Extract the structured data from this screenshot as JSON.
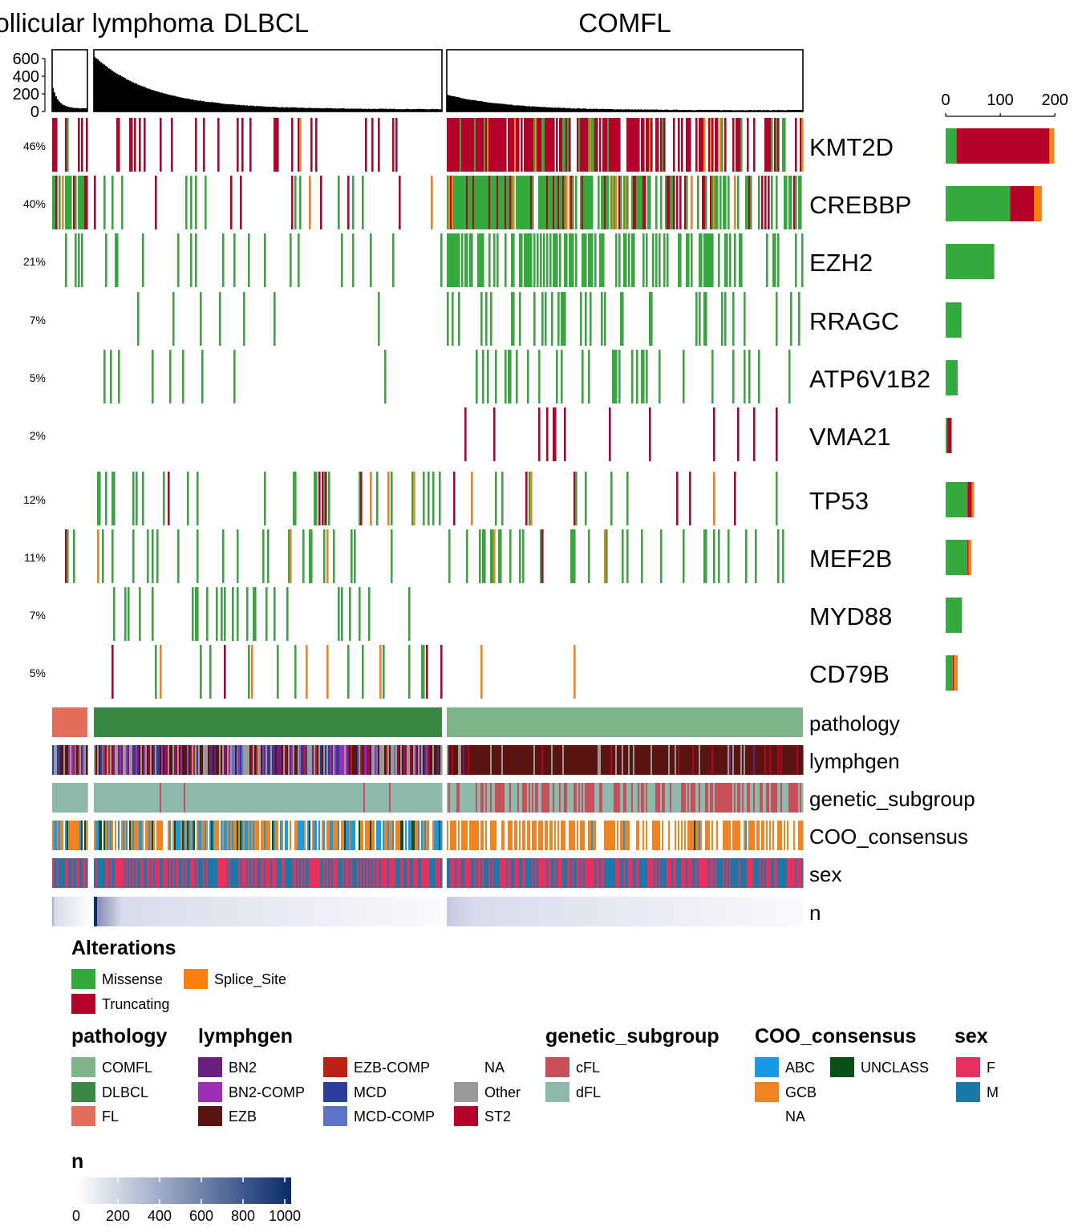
{
  "chart_data": {
    "type": "heatmap",
    "column_titles": [
      "Follicular lymphoma",
      "DLBCL",
      "COMFL"
    ],
    "top_barplot": {
      "y_ticks": [
        0,
        200,
        400,
        600
      ],
      "ylim": [
        0,
        700
      ],
      "profiles": [
        {
          "group": "Follicular lymphoma",
          "peak": 270,
          "tail": 35
        },
        {
          "group": "DLBCL",
          "peak": 620,
          "tail": 25
        },
        {
          "group": "COMFL",
          "peak": 190,
          "tail": 15
        }
      ]
    },
    "genes": [
      {
        "name": "KMT2D",
        "pct": "46%",
        "counts": {
          "Missense": 20,
          "Truncating": 170,
          "Splice_Site": 9
        }
      },
      {
        "name": "CREBBP",
        "pct": "40%",
        "counts": {
          "Missense": 118,
          "Truncating": 44,
          "Splice_Site": 14
        }
      },
      {
        "name": "EZH2",
        "pct": "21%",
        "counts": {
          "Missense": 89,
          "Truncating": 0,
          "Splice_Site": 0
        }
      },
      {
        "name": "RRAGC",
        "pct": "7%",
        "counts": {
          "Missense": 29,
          "Truncating": 0,
          "Splice_Site": 0
        }
      },
      {
        "name": "ATP6V1B2",
        "pct": "5%",
        "counts": {
          "Missense": 22,
          "Truncating": 0,
          "Splice_Site": 0
        }
      },
      {
        "name": "VMA21",
        "pct": "2%",
        "counts": {
          "Missense": 3,
          "Truncating": 8,
          "Splice_Site": 0
        }
      },
      {
        "name": "TP53",
        "pct": "12%",
        "counts": {
          "Missense": 40,
          "Truncating": 8,
          "Splice_Site": 4
        }
      },
      {
        "name": "MEF2B",
        "pct": "11%",
        "counts": {
          "Missense": 40,
          "Truncating": 2,
          "Splice_Site": 5
        }
      },
      {
        "name": "MYD88",
        "pct": "7%",
        "counts": {
          "Missense": 30,
          "Truncating": 0,
          "Splice_Site": 0
        }
      },
      {
        "name": "CD79B",
        "pct": "5%",
        "counts": {
          "Missense": 13,
          "Truncating": 2,
          "Splice_Site": 7
        }
      }
    ],
    "right_barplot": {
      "x_ticks": [
        0,
        100,
        200
      ],
      "xlim": [
        0,
        210
      ]
    },
    "annotation_tracks": [
      "pathology",
      "lymphgen",
      "genetic_subgroup",
      "COO_consensus",
      "sex",
      "n"
    ],
    "legends": {
      "alterations": {
        "title": "Alterations",
        "items": [
          {
            "label": "Missense",
            "color": "#33AA3C"
          },
          {
            "label": "Splice_Site",
            "color": "#FF7F0E"
          },
          {
            "label": "Truncating",
            "color": "#B5002A"
          }
        ]
      },
      "pathology": {
        "title": "pathology",
        "items": [
          {
            "label": "COMFL",
            "color": "#7FB38A"
          },
          {
            "label": "DLBCL",
            "color": "#3A8943"
          },
          {
            "label": "FL",
            "color": "#E56D5B"
          }
        ]
      },
      "lymphgen": {
        "title": "lymphgen",
        "items": [
          {
            "label": "BN2",
            "color": "#6B1F80"
          },
          {
            "label": "BN2-COMP",
            "color": "#9B2DB8"
          },
          {
            "label": "EZB",
            "color": "#5A1510"
          },
          {
            "label": "EZB-COMP",
            "color": "#BB2215"
          },
          {
            "label": "MCD",
            "color": "#2B3F9A"
          },
          {
            "label": "MCD-COMP",
            "color": "#5B73C9"
          },
          {
            "label": "NA",
            "color": "#FFFFFF"
          },
          {
            "label": "Other",
            "color": "#9A9A9A"
          },
          {
            "label": "ST2",
            "color": "#B5002A"
          }
        ]
      },
      "genetic_subgroup": {
        "title": "genetic_subgroup",
        "items": [
          {
            "label": "cFL",
            "color": "#C9505A"
          },
          {
            "label": "dFL",
            "color": "#8BB9AB"
          }
        ]
      },
      "COO_consensus": {
        "title": "COO_consensus",
        "items": [
          {
            "label": "ABC",
            "color": "#179BE8"
          },
          {
            "label": "GCB",
            "color": "#F28320"
          },
          {
            "label": "NA",
            "color": "#FFFFFF"
          },
          {
            "label": "UNCLASS",
            "color": "#0B5018"
          }
        ]
      },
      "sex": {
        "title": "sex",
        "items": [
          {
            "label": "F",
            "color": "#E8305F"
          },
          {
            "label": "M",
            "color": "#1878A8"
          }
        ]
      },
      "n": {
        "title": "n",
        "ticks": [
          0,
          200,
          400,
          600,
          800,
          1000
        ],
        "range": [
          0,
          1000
        ],
        "colors": [
          "#FFFFFF",
          "#0A2A6B"
        ]
      }
    }
  }
}
